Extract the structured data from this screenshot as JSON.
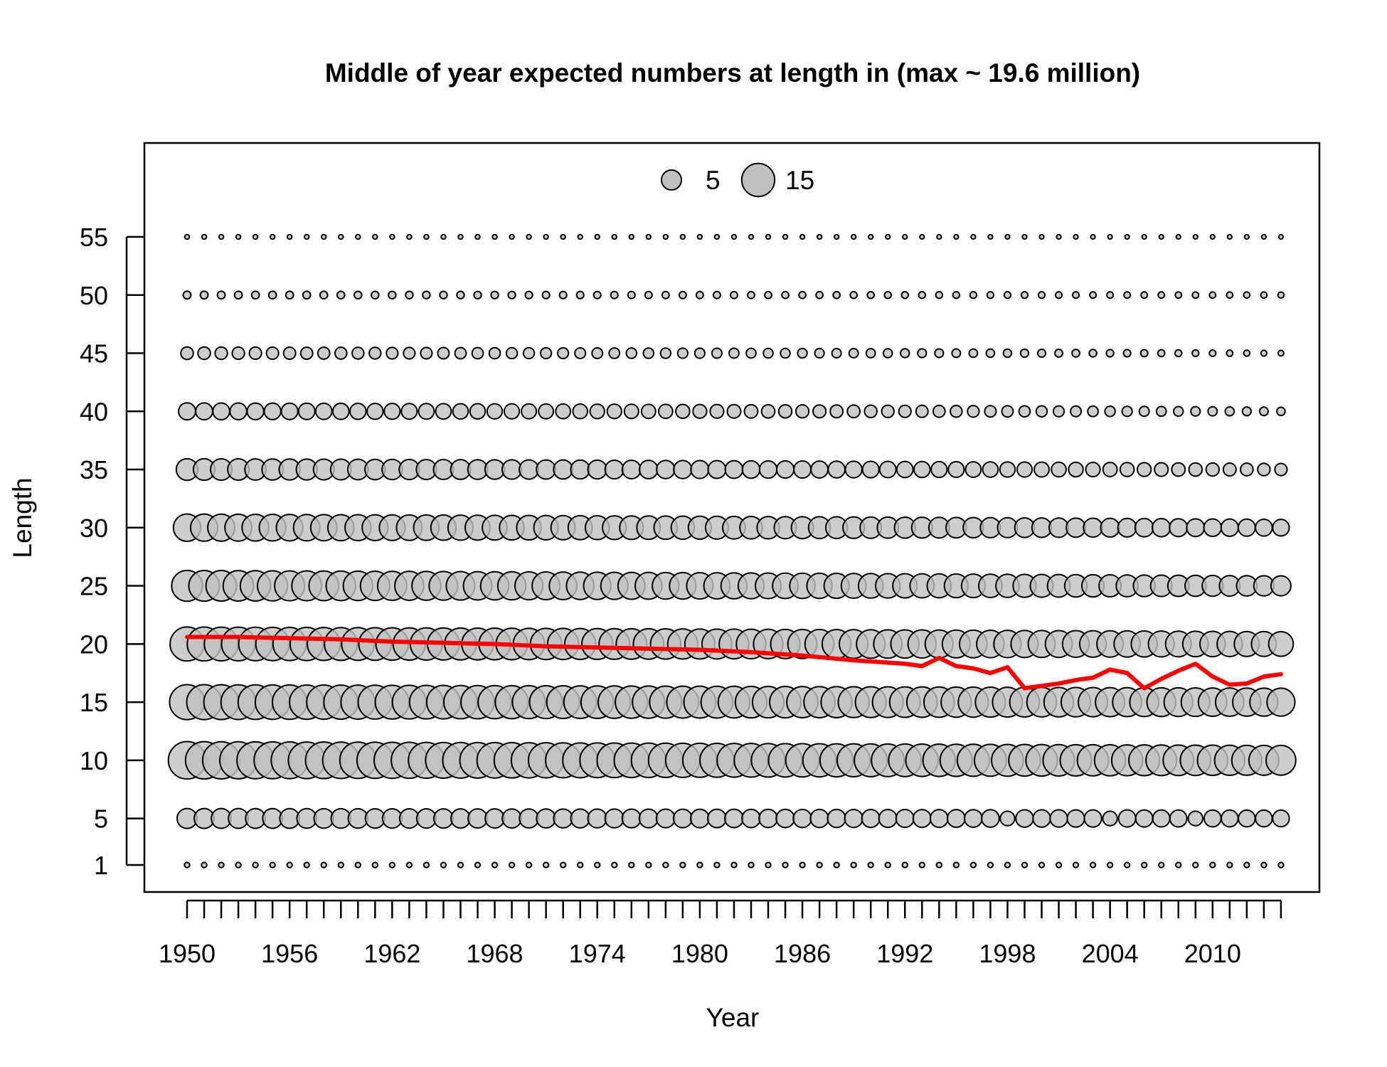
{
  "chart_data": {
    "type": "scatter",
    "subtype": "bubble",
    "title": "Middle of year expected numbers at length in (max ~ 19.6 million)",
    "xlabel": "Year",
    "ylabel": "Length",
    "x_range": [
      1950,
      2014
    ],
    "y_range": [
      1,
      55
    ],
    "x_ticks": [
      1950,
      1956,
      1962,
      1968,
      1974,
      1980,
      1986,
      1992,
      1998,
      2004,
      2010
    ],
    "y_ticks": [
      1,
      5,
      10,
      15,
      20,
      25,
      30,
      35,
      40,
      45,
      50,
      55
    ],
    "grid": false,
    "legend": {
      "position": "top-center",
      "entries": [
        {
          "label": "5",
          "value": 5
        },
        {
          "label": "15",
          "value": 15
        }
      ]
    },
    "colors": {
      "bubble_fill": "#c0c0c0",
      "bubble_stroke": "#000000",
      "mean_line": "#ff0000"
    },
    "bubble_series": [
      {
        "length": 1,
        "start": 0.15,
        "end": 0.15,
        "dips": {}
      },
      {
        "length": 5,
        "start": 5.0,
        "end": 3.3,
        "dips": {
          "1998": 2.4,
          "2004": 2.4,
          "2009": 2.4
        }
      },
      {
        "length": 10,
        "start": 19.6,
        "end": 12.0,
        "dips": {}
      },
      {
        "length": 15,
        "start": 17.0,
        "end": 10.5,
        "dips": {}
      },
      {
        "length": 20,
        "start": 16.0,
        "end": 8.0,
        "dips": {}
      },
      {
        "length": 25,
        "start": 13.0,
        "end": 5.0,
        "dips": {}
      },
      {
        "length": 30,
        "start": 10.0,
        "end": 3.3,
        "dips": {}
      },
      {
        "length": 35,
        "start": 6.0,
        "end": 1.6,
        "dips": {}
      },
      {
        "length": 40,
        "start": 3.5,
        "end": 0.6,
        "dips": {}
      },
      {
        "length": 45,
        "start": 1.7,
        "end": 0.2,
        "dips": {}
      },
      {
        "length": 50,
        "start": 0.5,
        "end": 0.25,
        "dips": {}
      },
      {
        "length": 55,
        "start": 0.1,
        "end": 0.08,
        "dips": {}
      }
    ],
    "mean_length": {
      "x": [
        1950,
        1953,
        1956,
        1959,
        1962,
        1965,
        1968,
        1971,
        1974,
        1977,
        1980,
        1983,
        1986,
        1989,
        1992,
        1993,
        1994,
        1995,
        1996,
        1997,
        1998,
        1999,
        2000,
        2001,
        2002,
        2003,
        2004,
        2005,
        2006,
        2007,
        2008,
        2009,
        2010,
        2011,
        2012,
        2013,
        2014
      ],
      "y": [
        20.6,
        20.6,
        20.5,
        20.4,
        20.2,
        20.1,
        20.0,
        19.8,
        19.7,
        19.6,
        19.5,
        19.3,
        19.0,
        18.6,
        18.3,
        18.1,
        18.8,
        18.1,
        17.9,
        17.5,
        18.0,
        16.2,
        16.4,
        16.6,
        16.9,
        17.1,
        17.8,
        17.5,
        16.2,
        17.0,
        17.7,
        18.3,
        17.2,
        16.5,
        16.6,
        17.2,
        17.4
      ]
    }
  }
}
